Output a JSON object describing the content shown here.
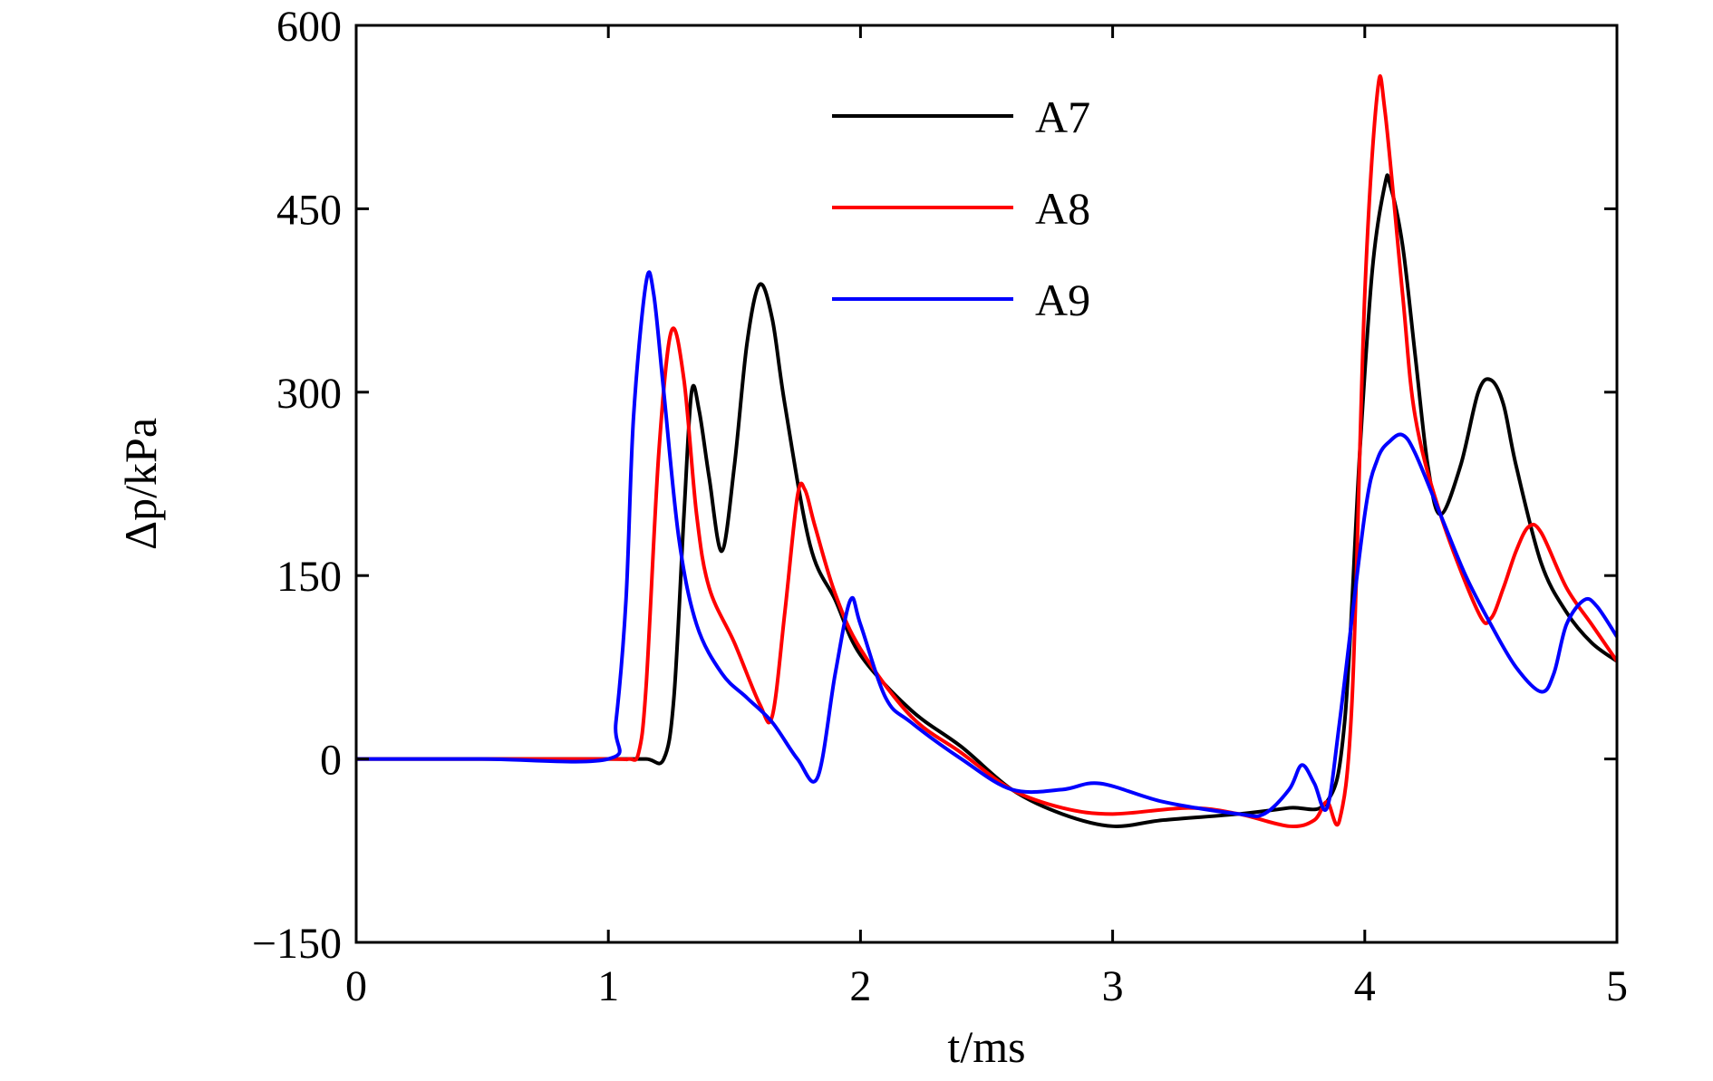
{
  "chart_data": {
    "type": "line",
    "xlabel": "t/ms",
    "ylabel": "Δp/kPa",
    "xlim": [
      0,
      5
    ],
    "ylim": [
      -150,
      600
    ],
    "xticks": [
      "0",
      "1",
      "2",
      "3",
      "4",
      "5"
    ],
    "yticks": [
      "−150",
      "0",
      "150",
      "300",
      "450",
      "600"
    ],
    "grid": false,
    "legend_position": "top-center",
    "series": [
      {
        "name": "A7",
        "color": "#000000",
        "x": [
          0,
          0.5,
          1.0,
          1.15,
          1.22,
          1.26,
          1.3,
          1.33,
          1.36,
          1.4,
          1.45,
          1.5,
          1.55,
          1.6,
          1.65,
          1.7,
          1.8,
          1.9,
          2.0,
          2.2,
          2.4,
          2.6,
          2.8,
          3.0,
          3.2,
          3.5,
          3.7,
          3.85,
          3.92,
          3.98,
          4.03,
          4.08,
          4.1,
          4.15,
          4.2,
          4.25,
          4.3,
          4.38,
          4.45,
          4.5,
          4.55,
          4.6,
          4.7,
          4.8,
          4.9,
          5.0
        ],
        "y": [
          0,
          0,
          0,
          0,
          0,
          50,
          200,
          300,
          285,
          230,
          170,
          240,
          340,
          388,
          360,
          290,
          175,
          130,
          85,
          40,
          10,
          -25,
          -45,
          -55,
          -50,
          -45,
          -40,
          -35,
          30,
          250,
          400,
          470,
          470,
          420,
          330,
          240,
          200,
          240,
          300,
          310,
          290,
          240,
          160,
          120,
          95,
          80
        ]
      },
      {
        "name": "A8",
        "color": "#ff0000",
        "x": [
          0,
          0.5,
          1.0,
          1.08,
          1.12,
          1.15,
          1.2,
          1.25,
          1.3,
          1.35,
          1.4,
          1.5,
          1.6,
          1.65,
          1.7,
          1.75,
          1.78,
          1.82,
          1.9,
          2.0,
          2.2,
          2.4,
          2.6,
          2.8,
          3.0,
          3.3,
          3.5,
          3.7,
          3.8,
          3.85,
          3.9,
          3.95,
          4.0,
          4.05,
          4.08,
          4.15,
          4.2,
          4.3,
          4.45,
          4.5,
          4.55,
          4.6,
          4.65,
          4.7,
          4.8,
          4.9,
          5.0
        ],
        "y": [
          0,
          0,
          0,
          0,
          5,
          60,
          250,
          350,
          310,
          200,
          140,
          95,
          45,
          35,
          120,
          215,
          220,
          190,
          135,
          90,
          35,
          5,
          -25,
          -40,
          -45,
          -40,
          -45,
          -55,
          -50,
          -35,
          -50,
          50,
          380,
          545,
          530,
          380,
          280,
          200,
          120,
          115,
          140,
          170,
          190,
          185,
          140,
          110,
          80
        ]
      },
      {
        "name": "A9",
        "color": "#0000ff",
        "x": [
          0,
          0.5,
          1.0,
          1.03,
          1.07,
          1.1,
          1.15,
          1.18,
          1.22,
          1.28,
          1.35,
          1.45,
          1.55,
          1.65,
          1.75,
          1.83,
          1.9,
          1.96,
          2.0,
          2.1,
          2.2,
          2.4,
          2.6,
          2.8,
          2.95,
          3.2,
          3.5,
          3.6,
          3.7,
          3.75,
          3.8,
          3.85,
          3.9,
          4.0,
          4.05,
          4.1,
          4.15,
          4.2,
          4.3,
          4.4,
          4.5,
          4.6,
          4.7,
          4.75,
          4.8,
          4.87,
          4.92,
          5.0
        ],
        "y": [
          0,
          0,
          0,
          30,
          130,
          280,
          390,
          380,
          300,
          180,
          110,
          70,
          50,
          30,
          0,
          -15,
          70,
          130,
          110,
          50,
          30,
          0,
          -25,
          -25,
          -20,
          -35,
          -45,
          -45,
          -25,
          -5,
          -20,
          -40,
          30,
          200,
          245,
          260,
          265,
          250,
          200,
          150,
          110,
          75,
          55,
          70,
          110,
          130,
          125,
          100
        ]
      }
    ]
  }
}
